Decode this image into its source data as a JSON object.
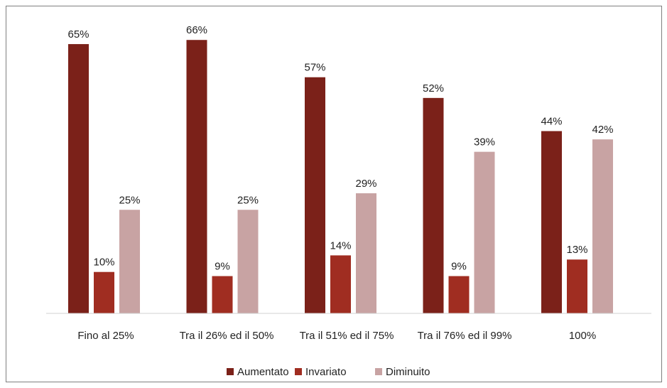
{
  "chart_data": {
    "type": "bar",
    "title": "",
    "xlabel": "",
    "ylabel": "",
    "ylim": [
      0,
      70
    ],
    "grid": false,
    "legend_position": "bottom",
    "categories": [
      "Fino al 25%",
      "Tra il 26% ed il 50%",
      "Tra il 51% ed il 75%",
      "Tra il 76% ed il 99%",
      "100%"
    ],
    "series": [
      {
        "name": "Aumentato",
        "color": "#7b2119",
        "values": [
          65,
          66,
          57,
          52,
          44
        ],
        "labels": [
          "65%",
          "66%",
          "57%",
          "52%",
          "44%"
        ]
      },
      {
        "name": "Invariato",
        "color": "#a02d21",
        "values": [
          10,
          9,
          14,
          9,
          13
        ],
        "labels": [
          "10%",
          "9%",
          "14%",
          "9%",
          "13%"
        ]
      },
      {
        "name": "Diminuito",
        "color": "#c8a3a3",
        "values": [
          25,
          25,
          29,
          39,
          42
        ],
        "labels": [
          "25%",
          "25%",
          "29%",
          "39%",
          "42%"
        ]
      }
    ]
  }
}
